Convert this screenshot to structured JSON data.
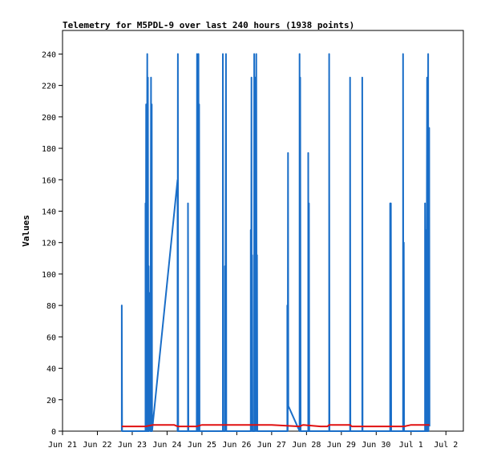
{
  "chart_data": {
    "type": "line",
    "title": "Telemetry for M5PDL-9 over last 240 hours (1938 points)",
    "ylabel": "Values",
    "xlabel": "",
    "ylim": [
      0,
      255
    ],
    "xlim": [
      0,
      11.5
    ],
    "y_ticks": [
      0,
      20,
      40,
      60,
      80,
      100,
      120,
      140,
      160,
      180,
      200,
      220,
      240
    ],
    "x_ticks": [
      {
        "label": "Jun 21",
        "x": 0
      },
      {
        "label": "Jun 22",
        "x": 1
      },
      {
        "label": "Jun 23",
        "x": 2
      },
      {
        "label": "Jun 24",
        "x": 3
      },
      {
        "label": "Jun 25",
        "x": 4
      },
      {
        "label": "Jun 26",
        "x": 5
      },
      {
        "label": "Jun 27",
        "x": 6
      },
      {
        "label": "Jun 28",
        "x": 7
      },
      {
        "label": "Jun 29",
        "x": 8
      },
      {
        "label": "Jun 30",
        "x": 9
      },
      {
        "label": "Jul 1",
        "x": 10
      },
      {
        "label": "Jul 2",
        "x": 11
      }
    ],
    "grid": false,
    "colors": {
      "blue_series": "#1a6ec8",
      "red_series": "#e01010",
      "axis": "#000000"
    },
    "series": [
      {
        "color": "#1a6ec8",
        "points": [
          [
            1.7,
            0
          ],
          [
            1.7,
            80
          ],
          [
            1.71,
            0
          ],
          [
            2.38,
            0
          ],
          [
            2.38,
            145
          ],
          [
            2.39,
            0
          ],
          [
            2.4,
            208
          ],
          [
            2.41,
            0
          ],
          [
            2.43,
            240
          ],
          [
            2.44,
            0
          ],
          [
            2.45,
            225
          ],
          [
            2.46,
            0
          ],
          [
            2.47,
            105
          ],
          [
            2.48,
            0
          ],
          [
            2.5,
            72
          ],
          [
            2.51,
            88
          ],
          [
            2.52,
            0
          ],
          [
            2.54,
            225
          ],
          [
            2.55,
            0
          ],
          [
            2.56,
            208
          ],
          [
            2.57,
            0
          ],
          [
            3.3,
            160
          ],
          [
            3.3,
            0
          ],
          [
            3.31,
            240
          ],
          [
            3.32,
            0
          ],
          [
            3.6,
            0
          ],
          [
            3.6,
            145
          ],
          [
            3.61,
            0
          ],
          [
            3.85,
            0
          ],
          [
            3.86,
            240
          ],
          [
            3.87,
            0
          ],
          [
            3.88,
            160
          ],
          [
            3.89,
            0
          ],
          [
            3.9,
            240
          ],
          [
            3.91,
            0
          ],
          [
            3.92,
            208
          ],
          [
            3.93,
            0
          ],
          [
            4.6,
            0
          ],
          [
            4.6,
            240
          ],
          [
            4.61,
            0
          ],
          [
            4.66,
            0
          ],
          [
            4.66,
            105
          ],
          [
            4.67,
            0
          ],
          [
            4.69,
            240
          ],
          [
            4.7,
            0
          ],
          [
            5.4,
            0
          ],
          [
            5.4,
            128
          ],
          [
            5.41,
            0
          ],
          [
            5.42,
            225
          ],
          [
            5.43,
            0
          ],
          [
            5.44,
            112
          ],
          [
            5.45,
            0
          ],
          [
            5.5,
            0
          ],
          [
            5.5,
            240
          ],
          [
            5.51,
            0
          ],
          [
            5.53,
            225
          ],
          [
            5.54,
            0
          ],
          [
            5.56,
            240
          ],
          [
            5.57,
            0
          ],
          [
            5.58,
            112
          ],
          [
            5.59,
            0
          ],
          [
            6.45,
            0
          ],
          [
            6.45,
            80
          ],
          [
            6.46,
            0
          ],
          [
            6.47,
            177
          ],
          [
            6.48,
            16
          ],
          [
            6.8,
            0
          ],
          [
            6.8,
            240
          ],
          [
            6.81,
            0
          ],
          [
            6.82,
            225
          ],
          [
            6.83,
            0
          ],
          [
            7.05,
            0
          ],
          [
            7.05,
            177
          ],
          [
            7.06,
            0
          ],
          [
            7.07,
            145
          ],
          [
            7.08,
            0
          ],
          [
            7.65,
            0
          ],
          [
            7.65,
            240
          ],
          [
            7.66,
            0
          ],
          [
            8.25,
            0
          ],
          [
            8.25,
            225
          ],
          [
            8.26,
            0
          ],
          [
            8.6,
            0
          ],
          [
            8.6,
            225
          ],
          [
            8.61,
            0
          ],
          [
            9.4,
            0
          ],
          [
            9.4,
            145
          ],
          [
            9.41,
            0
          ],
          [
            9.42,
            145
          ],
          [
            9.43,
            0
          ],
          [
            9.77,
            0
          ],
          [
            9.77,
            240
          ],
          [
            9.78,
            0
          ],
          [
            9.79,
            120
          ],
          [
            9.8,
            0
          ],
          [
            10.4,
            0
          ],
          [
            10.4,
            145
          ],
          [
            10.41,
            0
          ],
          [
            10.43,
            128
          ],
          [
            10.44,
            0
          ],
          [
            10.46,
            225
          ],
          [
            10.47,
            0
          ],
          [
            10.49,
            240
          ],
          [
            10.5,
            0
          ],
          [
            10.52,
            193
          ],
          [
            10.53,
            3
          ]
        ]
      },
      {
        "color": "#e01010",
        "points": [
          [
            1.7,
            3
          ],
          [
            2.38,
            3
          ],
          [
            2.6,
            4
          ],
          [
            3.2,
            4
          ],
          [
            3.3,
            3
          ],
          [
            3.85,
            3
          ],
          [
            4.0,
            4
          ],
          [
            6.0,
            4
          ],
          [
            6.8,
            3
          ],
          [
            6.9,
            4
          ],
          [
            7.4,
            3
          ],
          [
            7.6,
            3
          ],
          [
            7.65,
            4
          ],
          [
            8.25,
            4
          ],
          [
            8.3,
            3
          ],
          [
            9.5,
            3
          ],
          [
            9.8,
            3
          ],
          [
            10.0,
            4
          ],
          [
            10.3,
            4
          ],
          [
            10.53,
            4
          ]
        ]
      }
    ]
  }
}
